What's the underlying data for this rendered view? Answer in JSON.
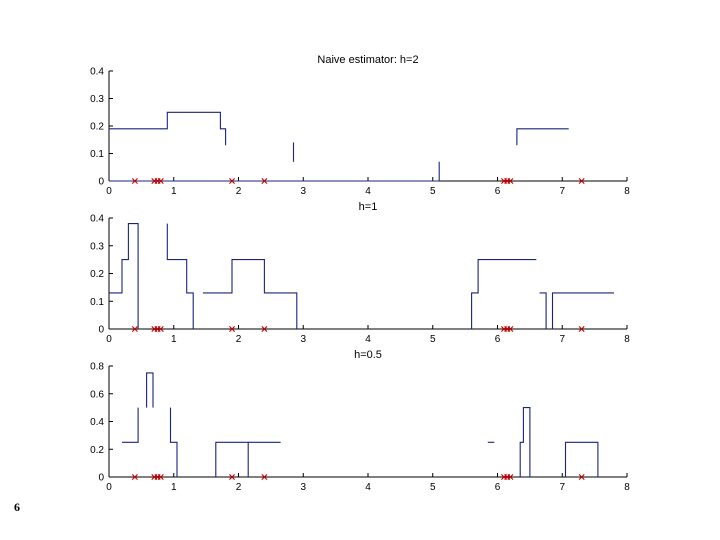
{
  "page_number": "6",
  "colors": {
    "estimate": "#1a237e",
    "samples": "#cc0000",
    "axis": "#000000"
  },
  "chart_data": [
    {
      "type": "line",
      "title": "Naive estimator: h=2",
      "xlim": [
        0,
        8
      ],
      "ylim": [
        0,
        0.4
      ],
      "xticks": [
        0,
        1,
        2,
        3,
        4,
        5,
        6,
        7,
        8
      ],
      "yticks": [
        0,
        0.1,
        0.2,
        0.3,
        0.4
      ],
      "tick_labels_y": [
        "0",
        "0.1",
        "0.2",
        "0.3",
        "0.4"
      ],
      "segments": [
        [
          [
            0,
            0.19
          ],
          [
            0.9,
            0.19
          ],
          [
            0.9,
            0.25
          ],
          [
            1.72,
            0.25
          ],
          [
            1.72,
            0.19
          ],
          [
            1.8,
            0.19
          ],
          [
            1.8,
            0.13
          ]
        ],
        [
          [
            2.85,
            0.07
          ],
          [
            2.85,
            0.14
          ]
        ],
        [
          [
            0,
            0
          ],
          [
            3.5,
            0
          ],
          [
            5.1,
            0
          ],
          [
            5.1,
            0.07
          ]
        ],
        [
          [
            6.3,
            0.13
          ],
          [
            6.3,
            0.19
          ],
          [
            7.1,
            0.19
          ]
        ]
      ],
      "samples": [
        0.4,
        0.7,
        0.75,
        0.8,
        1.9,
        2.4,
        6.1,
        6.15,
        6.2,
        7.3
      ]
    },
    {
      "type": "line",
      "title": "h=1",
      "xlim": [
        0,
        8
      ],
      "ylim": [
        0,
        0.4
      ],
      "xticks": [
        0,
        1,
        2,
        3,
        4,
        5,
        6,
        7,
        8
      ],
      "yticks": [
        0,
        0.1,
        0.2,
        0.3,
        0.4
      ],
      "tick_labels_y": [
        "0",
        "0.1",
        "0.2",
        "0.3",
        "0.4"
      ],
      "segments": [
        [
          [
            0,
            0.13
          ],
          [
            0.2,
            0.13
          ],
          [
            0.2,
            0.25
          ],
          [
            0.3,
            0.25
          ],
          [
            0.3,
            0.38
          ],
          [
            0.45,
            0.38
          ],
          [
            0.45,
            0
          ]
        ],
        [
          [
            0.9,
            0.38
          ],
          [
            0.9,
            0.25
          ],
          [
            1.2,
            0.25
          ],
          [
            1.2,
            0.13
          ],
          [
            1.3,
            0.13
          ],
          [
            1.3,
            0
          ]
        ],
        [
          [
            1.45,
            0.13
          ],
          [
            1.9,
            0.13
          ],
          [
            1.9,
            0.25
          ],
          [
            2.4,
            0.25
          ],
          [
            2.4,
            0.13
          ],
          [
            2.9,
            0.13
          ],
          [
            2.9,
            0
          ]
        ],
        [
          [
            5.6,
            0
          ],
          [
            5.6,
            0.13
          ],
          [
            5.7,
            0.13
          ],
          [
            5.7,
            0.25
          ],
          [
            6.6,
            0.25
          ]
        ],
        [
          [
            6.65,
            0.13
          ],
          [
            6.75,
            0.13
          ],
          [
            6.75,
            0
          ]
        ],
        [
          [
            6.85,
            0
          ],
          [
            6.85,
            0.13
          ],
          [
            7.8,
            0.13
          ]
        ]
      ],
      "samples": [
        0.4,
        0.7,
        0.75,
        0.8,
        1.9,
        2.4,
        6.1,
        6.15,
        6.2,
        7.3
      ]
    },
    {
      "type": "line",
      "title": "h=0.5",
      "xlim": [
        0,
        8
      ],
      "ylim": [
        0,
        0.8
      ],
      "xticks": [
        0,
        1,
        2,
        3,
        4,
        5,
        6,
        7,
        8
      ],
      "yticks": [
        0,
        0.2,
        0.4,
        0.6,
        0.8
      ],
      "tick_labels_y": [
        "0",
        "0.2",
        "0.4",
        "0.6",
        "0.8"
      ],
      "segments": [
        [
          [
            0.2,
            0.25
          ],
          [
            0.45,
            0.25
          ],
          [
            0.45,
            0.5
          ]
        ],
        [
          [
            0.58,
            0.5
          ],
          [
            0.58,
            0.75
          ],
          [
            0.68,
            0.75
          ],
          [
            0.68,
            0.5
          ]
        ],
        [
          [
            0.95,
            0.5
          ],
          [
            0.95,
            0.25
          ],
          [
            1.05,
            0.25
          ],
          [
            1.05,
            0
          ]
        ],
        [
          [
            1.65,
            0
          ],
          [
            1.65,
            0.25
          ],
          [
            2.15,
            0.25
          ],
          [
            2.15,
            0
          ]
        ],
        [
          [
            2.15,
            0.25
          ],
          [
            2.65,
            0.25
          ]
        ],
        [
          [
            5.85,
            0.25
          ],
          [
            5.95,
            0.25
          ]
        ],
        [
          [
            6.35,
            0
          ],
          [
            6.35,
            0.25
          ],
          [
            6.4,
            0.25
          ],
          [
            6.4,
            0.5
          ],
          [
            6.5,
            0.5
          ],
          [
            6.5,
            0
          ]
        ],
        [
          [
            7.05,
            0
          ],
          [
            7.05,
            0.25
          ],
          [
            7.55,
            0.25
          ],
          [
            7.55,
            0
          ]
        ]
      ],
      "samples": [
        0.4,
        0.7,
        0.75,
        0.8,
        1.9,
        2.4,
        6.1,
        6.15,
        6.2,
        7.3
      ]
    }
  ]
}
